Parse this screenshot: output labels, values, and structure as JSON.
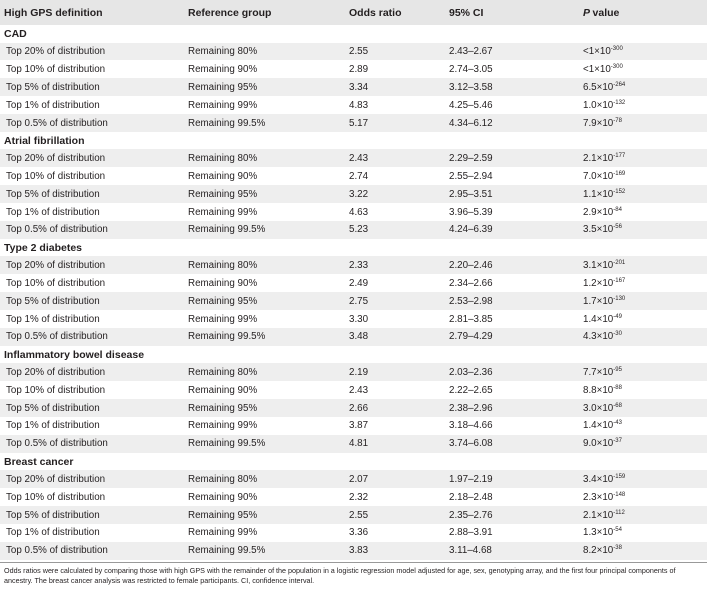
{
  "columns": [
    "High GPS definition",
    "Reference group",
    "Odds ratio",
    "95% CI",
    "P",
    "value"
  ],
  "sections": [
    {
      "name": "CAD",
      "rows": [
        {
          "def": "Top 20% of distribution",
          "ref": "Remaining 80%",
          "or": "2.55",
          "ci": "2.43–2.67",
          "p_base": "<1×10",
          "p_exp": "-300"
        },
        {
          "def": "Top 10% of distribution",
          "ref": "Remaining 90%",
          "or": "2.89",
          "ci": "2.74–3.05",
          "p_base": "<1×10",
          "p_exp": "-300"
        },
        {
          "def": "Top 5% of distribution",
          "ref": "Remaining 95%",
          "or": "3.34",
          "ci": "3.12–3.58",
          "p_base": "6.5×10",
          "p_exp": "-264"
        },
        {
          "def": "Top 1% of distribution",
          "ref": "Remaining 99%",
          "or": "4.83",
          "ci": "4.25–5.46",
          "p_base": "1.0×10",
          "p_exp": "-132"
        },
        {
          "def": "Top 0.5% of distribution",
          "ref": "Remaining 99.5%",
          "or": "5.17",
          "ci": "4.34–6.12",
          "p_base": "7.9×10",
          "p_exp": "-78"
        }
      ]
    },
    {
      "name": "Atrial fibrillation",
      "rows": [
        {
          "def": "Top 20% of distribution",
          "ref": "Remaining 80%",
          "or": "2.43",
          "ci": "2.29–2.59",
          "p_base": "2.1×10",
          "p_exp": "-177"
        },
        {
          "def": "Top 10% of distribution",
          "ref": "Remaining 90%",
          "or": "2.74",
          "ci": "2.55–2.94",
          "p_base": "7.0×10",
          "p_exp": "-169"
        },
        {
          "def": "Top 5% of distribution",
          "ref": "Remaining 95%",
          "or": "3.22",
          "ci": "2.95–3.51",
          "p_base": "1.1×10",
          "p_exp": "-152"
        },
        {
          "def": "Top 1% of distribution",
          "ref": "Remaining 99%",
          "or": "4.63",
          "ci": "3.96–5.39",
          "p_base": "2.9×10",
          "p_exp": "-84"
        },
        {
          "def": "Top 0.5% of distribution",
          "ref": "Remaining 99.5%",
          "or": "5.23",
          "ci": "4.24–6.39",
          "p_base": "3.5×10",
          "p_exp": "-56"
        }
      ]
    },
    {
      "name": "Type 2 diabetes",
      "rows": [
        {
          "def": "Top 20% of distribution",
          "ref": "Remaining 80%",
          "or": "2.33",
          "ci": "2.20–2.46",
          "p_base": "3.1×10",
          "p_exp": "-201"
        },
        {
          "def": "Top 10% of distribution",
          "ref": "Remaining 90%",
          "or": "2.49",
          "ci": "2.34–2.66",
          "p_base": "1.2×10",
          "p_exp": "-167"
        },
        {
          "def": "Top 5% of distribution",
          "ref": "Remaining 95%",
          "or": "2.75",
          "ci": "2.53–2.98",
          "p_base": "1.7×10",
          "p_exp": "-130"
        },
        {
          "def": "Top 1% of distribution",
          "ref": "Remaining 99%",
          "or": "3.30",
          "ci": "2.81–3.85",
          "p_base": "1.4×10",
          "p_exp": "-49"
        },
        {
          "def": "Top 0.5% of distribution",
          "ref": "Remaining 99.5%",
          "or": "3.48",
          "ci": "2.79–4.29",
          "p_base": "4.3×10",
          "p_exp": "-30"
        }
      ]
    },
    {
      "name": "Inflammatory bowel disease",
      "rows": [
        {
          "def": "Top 20% of distribution",
          "ref": "Remaining 80%",
          "or": "2.19",
          "ci": "2.03–2.36",
          "p_base": "7.7×10",
          "p_exp": "-95"
        },
        {
          "def": "Top 10% of distribution",
          "ref": "Remaining 90%",
          "or": "2.43",
          "ci": "2.22–2.65",
          "p_base": "8.8×10",
          "p_exp": "-88"
        },
        {
          "def": "Top 5% of distribution",
          "ref": "Remaining 95%",
          "or": "2.66",
          "ci": "2.38–2.96",
          "p_base": "3.0×10",
          "p_exp": "-68"
        },
        {
          "def": "Top 1% of distribution",
          "ref": "Remaining 99%",
          "or": "3.87",
          "ci": "3.18–4.66",
          "p_base": "1.4×10",
          "p_exp": "-43"
        },
        {
          "def": "Top 0.5% of distribution",
          "ref": "Remaining 99.5%",
          "or": "4.81",
          "ci": "3.74–6.08",
          "p_base": "9.0×10",
          "p_exp": "-37"
        }
      ]
    },
    {
      "name": "Breast cancer",
      "rows": [
        {
          "def": "Top 20% of distribution",
          "ref": "Remaining 80%",
          "or": "2.07",
          "ci": "1.97–2.19",
          "p_base": "3.4×10",
          "p_exp": "-159"
        },
        {
          "def": "Top 10% of distribution",
          "ref": "Remaining 90%",
          "or": "2.32",
          "ci": "2.18–2.48",
          "p_base": "2.3×10",
          "p_exp": "-148"
        },
        {
          "def": "Top 5% of distribution",
          "ref": "Remaining 95%",
          "or": "2.55",
          "ci": "2.35–2.76",
          "p_base": "2.1×10",
          "p_exp": "-112"
        },
        {
          "def": "Top 1% of distribution",
          "ref": "Remaining 99%",
          "or": "3.36",
          "ci": "2.88–3.91",
          "p_base": "1.3×10",
          "p_exp": "-54"
        },
        {
          "def": "Top 0.5% of distribution",
          "ref": "Remaining 99.5%",
          "or": "3.83",
          "ci": "3.11–4.68",
          "p_base": "8.2×10",
          "p_exp": "-38"
        }
      ]
    }
  ],
  "footnote": "Odds ratios were calculated by comparing those with high GPS with the remainder of the population in a logistic regression model adjusted for age, sex, genotyping array, and the first four principal components of ancestry. The breast cancer analysis was restricted to female participants. CI, confidence interval.",
  "colors": {
    "header_bg": "#e6e6e6",
    "shade_bg": "#eeeeee",
    "text": "#231f20"
  }
}
